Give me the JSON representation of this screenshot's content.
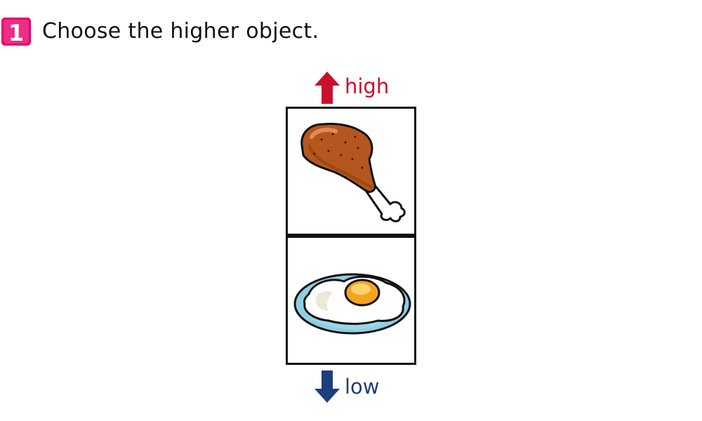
{
  "question": {
    "number": "1",
    "prompt": "Choose the higher object."
  },
  "labels": {
    "high": "high",
    "low": "low"
  },
  "colors": {
    "badge": "#e4006b",
    "high": "#c8102e",
    "low": "#1d3f7c"
  },
  "items": [
    {
      "position": "top",
      "icon": "chicken-drumstick"
    },
    {
      "position": "bottom",
      "icon": "fried-egg-on-plate"
    }
  ]
}
